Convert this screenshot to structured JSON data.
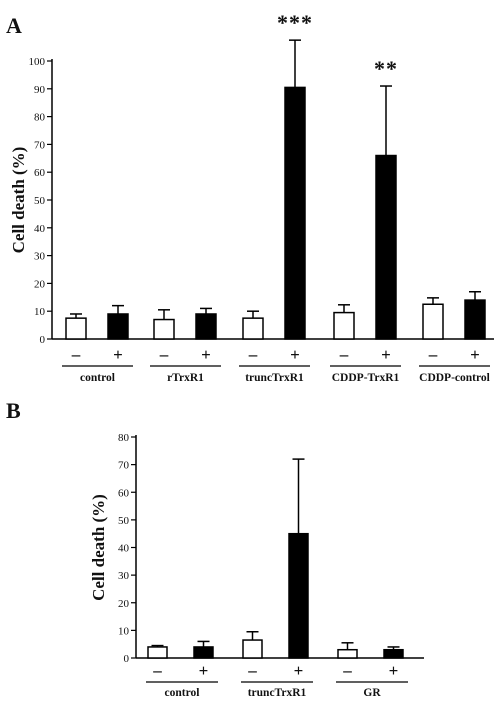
{
  "chart_data": [
    {
      "panel": "A",
      "type": "bar",
      "ylabel": "Cell death (%)",
      "ylim": [
        0,
        100
      ],
      "yticks": [
        "0",
        "10",
        "20",
        "30",
        "40",
        "50",
        "60",
        "70",
        "80",
        "90",
        "100"
      ],
      "grid": false,
      "treatment_labels": [
        "–",
        "+"
      ],
      "groups": [
        {
          "label": "control",
          "values": [
            7.5,
            9.0
          ],
          "errors": [
            1.5,
            3.0
          ],
          "stars": [
            "",
            ""
          ]
        },
        {
          "label": "rTrxR1",
          "values": [
            7.0,
            9.0
          ],
          "errors": [
            3.5,
            2.0
          ],
          "stars": [
            "",
            ""
          ]
        },
        {
          "label": "truncTrxR1",
          "values": [
            7.5,
            90.5
          ],
          "errors": [
            2.5,
            17.0
          ],
          "stars": [
            "",
            "***"
          ]
        },
        {
          "label": "CDDP-TrxR1",
          "values": [
            9.5,
            66.0
          ],
          "errors": [
            2.8,
            25.0
          ],
          "stars": [
            "",
            "**"
          ]
        },
        {
          "label": "CDDP-control",
          "values": [
            12.5,
            14.0
          ],
          "errors": [
            2.3,
            3.0
          ],
          "stars": [
            "",
            ""
          ]
        }
      ],
      "colors": {
        "minus": "#ffffff",
        "plus": "#000000"
      }
    },
    {
      "panel": "B",
      "type": "bar",
      "ylabel": "Cell death (%)",
      "ylim": [
        0,
        80
      ],
      "yticks": [
        "0",
        "10",
        "20",
        "30",
        "40",
        "50",
        "60",
        "70",
        "80"
      ],
      "grid": false,
      "treatment_labels": [
        "–",
        "+"
      ],
      "groups": [
        {
          "label": "control",
          "values": [
            4.0,
            4.0
          ],
          "errors": [
            0.5,
            2.0
          ],
          "stars": [
            "",
            ""
          ]
        },
        {
          "label": "truncTrxR1",
          "values": [
            6.5,
            45.0
          ],
          "errors": [
            3.0,
            27.0
          ],
          "stars": [
            "",
            ""
          ]
        },
        {
          "label": "GR",
          "values": [
            3.0,
            3.0
          ],
          "errors": [
            2.5,
            1.0
          ],
          "stars": [
            "",
            ""
          ]
        }
      ],
      "colors": {
        "minus": "#ffffff",
        "plus": "#000000"
      }
    }
  ]
}
